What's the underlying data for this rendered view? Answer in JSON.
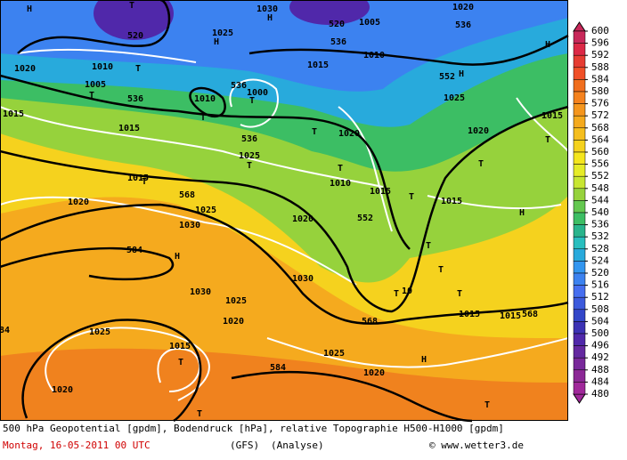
{
  "map": {
    "labels": [
      "H",
      "1020",
      "T",
      520,
      "H",
      1025,
      1030,
      "H",
      520,
      1005,
      536,
      1010,
      536,
      "H",
      1020,
      1010,
      "T",
      1015,
      1005,
      "T",
      536,
      1010,
      "T",
      536,
      1000,
      "T",
      552,
      "H",
      1025,
      1015,
      1015,
      536,
      "T",
      1020,
      1020,
      "T",
      1015,
      "T",
      1025,
      "T",
      1010,
      "T",
      1015,
      "T",
      568,
      1015,
      "T",
      1020,
      1025,
      552,
      1020,
      1015,
      "H",
      1030,
      584,
      "H",
      "T",
      "T",
      "T",
      1030,
      1030,
      1025,
      "T",
      10,
      1015,
      1015,
      568,
      568,
      1020,
      1025,
      84,
      1015,
      "T",
      1025,
      584,
      "H",
      1020,
      1020,
      "T",
      "T"
    ]
  },
  "colorbar": {
    "ticks": [
      600,
      596,
      592,
      588,
      584,
      580,
      576,
      572,
      568,
      564,
      560,
      556,
      552,
      548,
      544,
      540,
      536,
      532,
      528,
      524,
      520,
      516,
      512,
      508,
      504,
      500,
      496,
      492,
      488,
      484,
      480
    ],
    "colors": [
      "#c8285a",
      "#dc2846",
      "#e63c32",
      "#f05028",
      "#f06e1e",
      "#f5821e",
      "#f5961e",
      "#f5aa1e",
      "#f5be1e",
      "#f5d21e",
      "#f5e61e",
      "#e6ec28",
      "#c8e632",
      "#96d23c",
      "#64c850",
      "#3cbe64",
      "#28b48c",
      "#28bebe",
      "#28aadc",
      "#3296f0",
      "#3c82f0",
      "#466ef0",
      "#3c5adc",
      "#3246c8",
      "#3c32b4",
      "#5028aa",
      "#6428a0",
      "#78289a",
      "#8c2896",
      "#a0289a"
    ]
  },
  "caption": {
    "line1": "500 hPa Geopotential [gpdm], Bodendruck [hPa], relative Topographie H500-H1000 [gpdm]",
    "date": "Montag, 16-05-2011  00 UTC",
    "model": "(GFS)",
    "run": "(Analyse)",
    "credit": "© www.wetter3.de"
  }
}
